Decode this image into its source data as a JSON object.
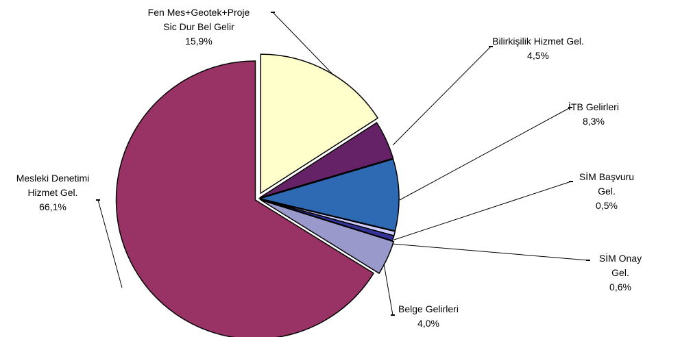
{
  "chart_data": {
    "type": "pie",
    "categories": [
      "Fen Mes+Geotek+Proje\nSic Dur Bel Gelir",
      "Bilirkişilik Hizmet  Gel.",
      "İTB Gelirleri",
      "SİM Başvuru Gel.",
      "SİM Onay Gel.",
      "Belge Gelirleri",
      "Mesleki Denetimi\nHizmet Gel."
    ],
    "values": [
      15.9,
      4.5,
      8.3,
      0.5,
      0.6,
      4.0,
      66.1
    ],
    "value_labels": [
      "15,9%",
      "4,5%",
      "8,3%",
      "0,5%",
      "0,6%",
      "4,0%",
      "66,1%"
    ],
    "colors": [
      "#ffffcc",
      "#662266",
      "#2e6ab3",
      "#ccccff",
      "#333399",
      "#9999cc",
      "#993366"
    ]
  }
}
